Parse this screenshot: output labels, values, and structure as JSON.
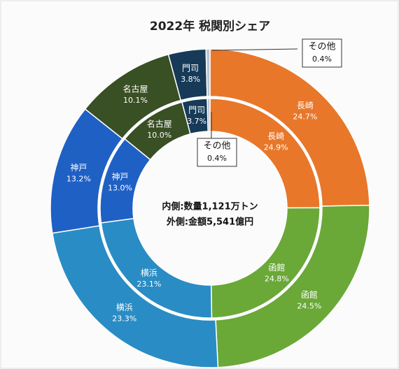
{
  "chart_data": {
    "type": "donut",
    "title": "2022年 税関別シェア",
    "annotations": [
      "内側:数量1,121万トン",
      "外側:金額5,541億円"
    ],
    "categories": [
      "長崎",
      "函館",
      "横浜",
      "神戸",
      "名古屋",
      "門司",
      "その他"
    ],
    "colors": [
      "#e8772a",
      "#6aa838",
      "#2a8cc4",
      "#1f60c4",
      "#394f24",
      "#163a58",
      "#b8c4d0"
    ],
    "series": [
      {
        "values": [
          24.7,
          24.5,
          23.3,
          13.2,
          10.1,
          3.8,
          0.4
        ],
        "value_labels": [
          "24.7%",
          "24.5%",
          "23.3%",
          "13.2%",
          "10.1%",
          "3.8%",
          "0.4%"
        ]
      },
      {
        "values": [
          24.9,
          24.8,
          23.1,
          13.0,
          10.0,
          3.7,
          0.4
        ],
        "value_labels": [
          "24.9%",
          "24.8%",
          "23.1%",
          "13.0%",
          "10.0%",
          "3.7%",
          "0.4%"
        ]
      }
    ]
  }
}
